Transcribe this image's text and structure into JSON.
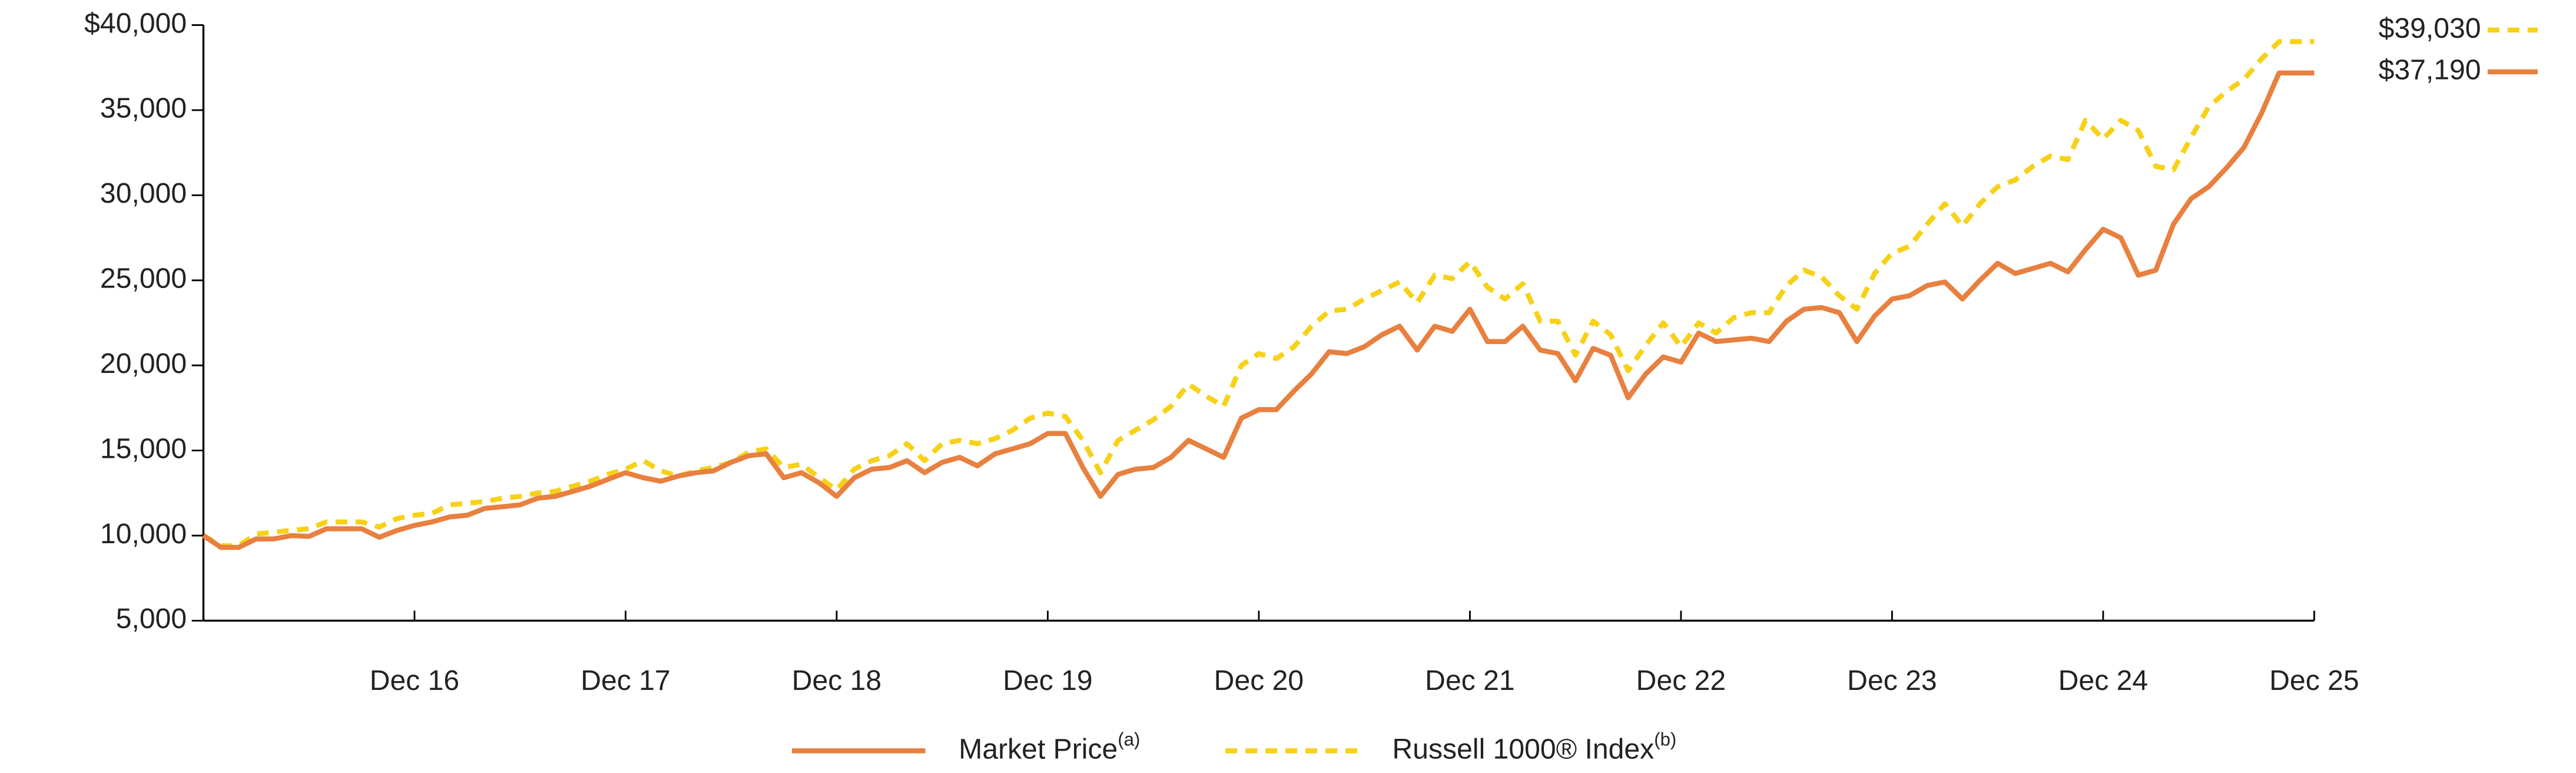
{
  "chart_data": {
    "type": "line",
    "categories": [
      null,
      null,
      null,
      null,
      null,
      null,
      null,
      null,
      null,
      null,
      null,
      null,
      "Dec 16",
      null,
      null,
      null,
      null,
      null,
      null,
      null,
      null,
      null,
      null,
      null,
      "Dec 17",
      null,
      null,
      null,
      null,
      null,
      null,
      null,
      null,
      null,
      null,
      null,
      "Dec 18",
      null,
      null,
      null,
      null,
      null,
      null,
      null,
      null,
      null,
      null,
      null,
      "Dec 19",
      null,
      null,
      null,
      null,
      null,
      null,
      null,
      null,
      null,
      null,
      null,
      "Dec 20",
      null,
      null,
      null,
      null,
      null,
      null,
      null,
      null,
      null,
      null,
      null,
      "Dec 21",
      null,
      null,
      null,
      null,
      null,
      null,
      null,
      null,
      null,
      null,
      null,
      "Dec 22",
      null,
      null,
      null,
      null,
      null,
      null,
      null,
      null,
      null,
      null,
      null,
      "Dec 23",
      null,
      null,
      null,
      null,
      null,
      null,
      null,
      null,
      null,
      null,
      null,
      "Dec 24",
      null,
      null,
      null,
      null,
      null,
      null,
      null,
      null,
      null,
      null,
      null,
      "Dec 25"
    ],
    "series": [
      {
        "name": "Market Price",
        "note": "(a)",
        "color": "#e8803f",
        "dashed": false,
        "end_label": "$37,190",
        "values": [
          10000,
          9300,
          9300,
          9800,
          9800,
          10000,
          9950,
          10400,
          10400,
          10400,
          9900,
          10300,
          10600,
          10800,
          11100,
          11200,
          11600,
          11700,
          11800,
          12200,
          12300,
          12600,
          12900,
          13300,
          13700,
          13400,
          13200,
          13500,
          13700,
          13800,
          14300,
          14700,
          14800,
          13400,
          13700,
          13100,
          12300,
          13400,
          13900,
          14000,
          14400,
          13700,
          14300,
          14600,
          14100,
          14800,
          15100,
          15400,
          16000,
          16000,
          14000,
          12300,
          13600,
          13900,
          14000,
          14600,
          15600,
          15100,
          14600,
          16900,
          17400,
          17400,
          18500,
          19500,
          20800,
          20700,
          21100,
          21800,
          22300,
          20900,
          22300,
          22000,
          23300,
          21400,
          21400,
          22300,
          20900,
          20700,
          19100,
          21000,
          20600,
          18100,
          19500,
          20500,
          20200,
          21900,
          21400,
          21500,
          21600,
          21400,
          22600,
          23300,
          23400,
          23100,
          21400,
          22900,
          23900,
          24100,
          24700,
          24900,
          23900,
          25000,
          26000,
          25400,
          25700,
          26000,
          25500,
          26800,
          28000,
          27500,
          25300,
          25600,
          28300,
          29800,
          30500,
          31600,
          32800,
          34800,
          37190,
          37190,
          37190
        ]
      },
      {
        "name": "Russell 1000® Index",
        "note": "(b)",
        "color": "#f7d117",
        "dashed": true,
        "end_label": "$39,030",
        "values": [
          10000,
          9400,
          9400,
          10100,
          10200,
          10300,
          10400,
          10800,
          10800,
          10800,
          10500,
          11000,
          11200,
          11300,
          11800,
          11900,
          12000,
          12200,
          12300,
          12500,
          12600,
          12900,
          13200,
          13600,
          13900,
          14400,
          13800,
          13500,
          13800,
          14000,
          14300,
          14900,
          15100,
          14000,
          14200,
          13400,
          12700,
          13900,
          14400,
          14700,
          15400,
          14400,
          15400,
          15600,
          15400,
          15700,
          16200,
          16900,
          17200,
          17000,
          15600,
          13700,
          15600,
          16200,
          16800,
          17600,
          18900,
          18200,
          17600,
          20000,
          20700,
          20400,
          21100,
          22300,
          23200,
          23300,
          23900,
          24400,
          24900,
          23700,
          25300,
          25100,
          26100,
          24600,
          23900,
          24800,
          22600,
          22600,
          20600,
          22600,
          21800,
          19700,
          21200,
          22500,
          21100,
          22500,
          21900,
          22800,
          23100,
          23100,
          24700,
          25600,
          25200,
          24100,
          23300,
          25400,
          26600,
          27000,
          28300,
          29500,
          28200,
          29500,
          30500,
          30900,
          31700,
          32300,
          32100,
          34400,
          33300,
          34400,
          33800,
          31700,
          31500,
          33400,
          35200,
          36100,
          36800,
          38000,
          39030,
          39030,
          39030
        ]
      }
    ],
    "ylim": [
      5000,
      40000
    ],
    "yticks": [
      {
        "value": 5000,
        "label": "5,000"
      },
      {
        "value": 10000,
        "label": "10,000"
      },
      {
        "value": 15000,
        "label": "15,000"
      },
      {
        "value": 20000,
        "label": "20,000"
      },
      {
        "value": 25000,
        "label": "25,000"
      },
      {
        "value": 30000,
        "label": "30,000"
      },
      {
        "value": 35000,
        "label": "35,000"
      },
      {
        "value": 40000,
        "label": "$40,000"
      }
    ],
    "grid": false,
    "legend": "bottom"
  }
}
